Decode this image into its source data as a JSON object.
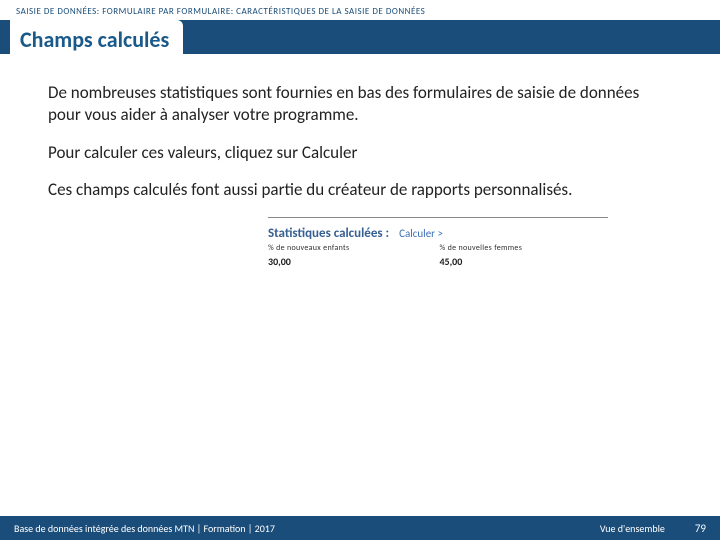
{
  "breadcrumb": "SAISIE DE DONNÉES: FORMULAIRE PAR FORMULAIRE: CARACTÉRISTIQUES DE LA SAISIE DE DONNÉES",
  "title": "Champs calculés",
  "paragraphs": {
    "p1": "De nombreuses statistiques sont fournies en bas des formulaires de saisie de données pour vous aider à analyser votre programme.",
    "p2": "Pour calculer ces valeurs, cliquez sur Calculer",
    "p3": "Ces champs calculés font aussi partie du créateur de rapports personnalisés."
  },
  "stats": {
    "heading": "Statistiques calculées :",
    "link": "Calculer >",
    "col1_label": "% de nouveaux enfants",
    "col1_value": "30,00",
    "col2_label": "% de nouvelles femmes",
    "col2_value": "45,00",
    "heading_color": "#365f91",
    "link_color": "#3b6fb5"
  },
  "footer": {
    "left": "Base de données intégrée des données MTN  |  Formation  |  2017",
    "section": "Vue d'ensemble",
    "page": "79"
  },
  "colors": {
    "header_bg": "#1a4d7a",
    "title_color": "#1a5a8a"
  }
}
